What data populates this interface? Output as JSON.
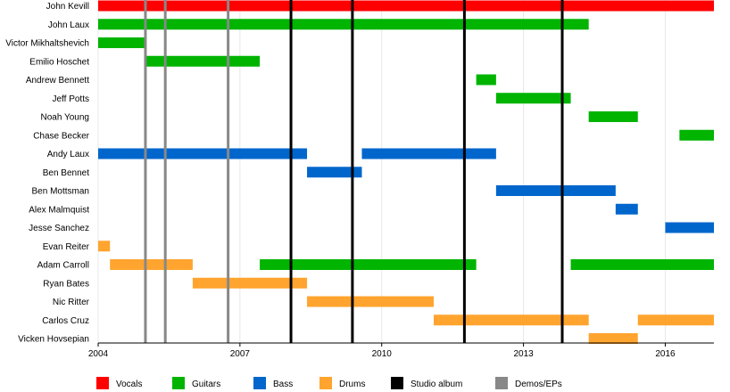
{
  "chart_data": {
    "type": "timeline",
    "title": "",
    "xlabel": "",
    "ylabel": "",
    "xlim": [
      2004.0,
      2017.03
    ],
    "x_ticks": [
      {
        "value": 2004,
        "label": "2004"
      },
      {
        "value": 2007,
        "label": "2007"
      },
      {
        "value": 2010,
        "label": "2010"
      },
      {
        "value": 2013,
        "label": "2013"
      },
      {
        "value": 2016,
        "label": "2016"
      }
    ],
    "members": [
      "John Kevill",
      "John Laux",
      "Victor Mikhaltshevich",
      "Emilio Hoschet",
      "Andrew Bennett",
      "Jeff Potts",
      "Noah Young",
      "Chase Becker",
      "Andy Laux",
      "Ben Bennet",
      "Ben Mottsman",
      "Alex Malmquist",
      "Jesse Sanchez",
      "Evan Reiter",
      "Adam Carroll",
      "Ryan Bates",
      "Nic Ritter",
      "Carlos Cruz",
      "Vicken Hovsepian"
    ],
    "roles": [
      {
        "key": "vocals",
        "name": "Vocals",
        "color": "#ff0000"
      },
      {
        "key": "guitars",
        "name": "Guitars",
        "color": "#00b400"
      },
      {
        "key": "bass",
        "name": "Bass",
        "color": "#0066cc"
      },
      {
        "key": "drums",
        "name": "Drums",
        "color": "#ffa42e"
      },
      {
        "key": "studio",
        "name": "Studio album",
        "color": "#000000"
      },
      {
        "key": "demo",
        "name": "Demos/EPs",
        "color": "#888888"
      }
    ],
    "bars": [
      {
        "member": "John Kevill",
        "role": "vocals",
        "start": 2004.0,
        "end": 2017.03
      },
      {
        "member": "John Laux",
        "role": "guitars",
        "start": 2004.0,
        "end": 2014.38
      },
      {
        "member": "Victor Mikhaltshevich",
        "role": "guitars",
        "start": 2004.0,
        "end": 2005.0
      },
      {
        "member": "Emilio Hoschet",
        "role": "guitars",
        "start": 2005.0,
        "end": 2007.42
      },
      {
        "member": "Andrew Bennett",
        "role": "guitars",
        "start": 2012.0,
        "end": 2012.42
      },
      {
        "member": "Jeff Potts",
        "role": "guitars",
        "start": 2012.42,
        "end": 2014.0
      },
      {
        "member": "Noah Young",
        "role": "guitars",
        "start": 2014.38,
        "end": 2015.42
      },
      {
        "member": "Chase Becker",
        "role": "guitars",
        "start": 2016.3,
        "end": 2017.03
      },
      {
        "member": "Andy Laux",
        "role": "bass",
        "start": 2004.0,
        "end": 2008.42
      },
      {
        "member": "Andy Laux",
        "role": "bass",
        "start": 2009.58,
        "end": 2012.42
      },
      {
        "member": "Ben Bennet",
        "role": "bass",
        "start": 2008.42,
        "end": 2009.58
      },
      {
        "member": "Ben Mottsman",
        "role": "bass",
        "start": 2012.42,
        "end": 2014.95
      },
      {
        "member": "Alex Malmquist",
        "role": "bass",
        "start": 2014.95,
        "end": 2015.42
      },
      {
        "member": "Jesse Sanchez",
        "role": "bass",
        "start": 2016.0,
        "end": 2017.03
      },
      {
        "member": "Evan Reiter",
        "role": "drums",
        "start": 2004.0,
        "end": 2004.25
      },
      {
        "member": "Adam Carroll",
        "role": "drums",
        "start": 2004.25,
        "end": 2006.0
      },
      {
        "member": "Adam Carroll",
        "role": "guitars",
        "start": 2007.42,
        "end": 2012.0
      },
      {
        "member": "Adam Carroll",
        "role": "guitars",
        "start": 2014.0,
        "end": 2017.03
      },
      {
        "member": "Ryan Bates",
        "role": "drums",
        "start": 2006.0,
        "end": 2008.42
      },
      {
        "member": "Nic Ritter",
        "role": "drums",
        "start": 2008.42,
        "end": 2011.1
      },
      {
        "member": "Carlos Cruz",
        "role": "drums",
        "start": 2011.1,
        "end": 2014.38
      },
      {
        "member": "Carlos Cruz",
        "role": "drums",
        "start": 2015.42,
        "end": 2017.03
      },
      {
        "member": "Vicken Hovsepian",
        "role": "drums",
        "start": 2014.38,
        "end": 2015.42
      }
    ],
    "events": [
      {
        "type": "demo",
        "date": 2005.0
      },
      {
        "type": "demo",
        "date": 2005.42
      },
      {
        "type": "demo",
        "date": 2006.75
      },
      {
        "type": "studio",
        "date": 2008.08
      },
      {
        "type": "studio",
        "date": 2009.38
      },
      {
        "type": "studio",
        "date": 2011.75
      },
      {
        "type": "studio",
        "date": 2013.82
      }
    ],
    "legend_position": "bottom"
  }
}
